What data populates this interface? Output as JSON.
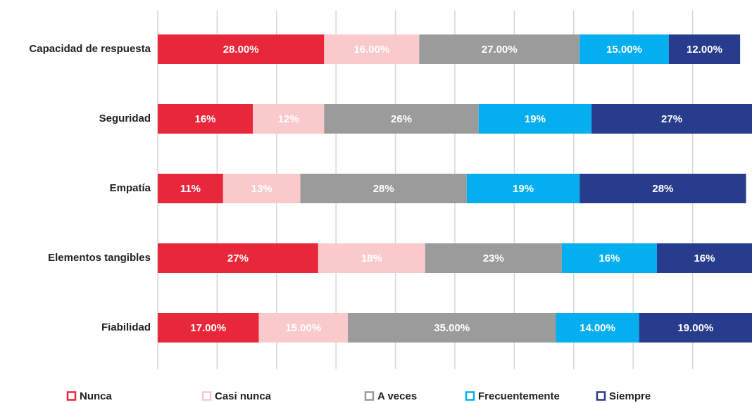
{
  "chart_data": {
    "type": "stacked_barh",
    "categories": [
      "Capacidad de respuesta",
      "Seguridad",
      "Empatía",
      "Elementos tangibles",
      "Fiabilidad"
    ],
    "xlim": [
      0,
      100
    ],
    "xticks": [
      0,
      10,
      20,
      30,
      40,
      50,
      60,
      70,
      80,
      90
    ],
    "grid": true,
    "legend": "bottom",
    "series": [
      {
        "name": "Nunca",
        "color": "#e8273a",
        "values": [
          28,
          16,
          11,
          27,
          17
        ],
        "value_labels": [
          "28.00%",
          "16%",
          "11%",
          "27%",
          "17.00%"
        ]
      },
      {
        "name": "Casi nunca",
        "color": "#f9c9cc",
        "values": [
          16,
          12,
          13,
          18,
          15
        ],
        "value_labels": [
          "16.00%",
          "12%",
          "13%",
          "18%",
          "15.00%"
        ]
      },
      {
        "name": "A veces",
        "color": "#9b9b9b",
        "values": [
          27,
          26,
          28,
          23,
          35
        ],
        "value_labels": [
          "27.00%",
          "26%",
          "28%",
          "23%",
          "35.00%"
        ]
      },
      {
        "name": "Frecuentemente",
        "color": "#04aeef",
        "values": [
          15,
          19,
          19,
          16,
          14
        ],
        "value_labels": [
          "15.00%",
          "19%",
          "19%",
          "16%",
          "14.00%"
        ]
      },
      {
        "name": "Siempre",
        "color": "#283c8e",
        "values": [
          12,
          27,
          28,
          16,
          19
        ],
        "value_labels": [
          "12.00%",
          "27%",
          "28%",
          "16%",
          "19.00%"
        ]
      }
    ]
  }
}
